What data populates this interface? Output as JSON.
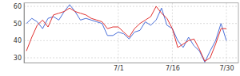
{
  "chart_data": {
    "type": "line",
    "categories": [
      null,
      null,
      null,
      null,
      null,
      null,
      null,
      null,
      null,
      null,
      null,
      null,
      null,
      null,
      null,
      null,
      null,
      "7/1",
      null,
      null,
      null,
      null,
      null,
      null,
      null,
      null,
      null,
      "7/16",
      null,
      null,
      null,
      null,
      null,
      null,
      null,
      null,
      null,
      "7/30"
    ],
    "series": [
      {
        "color": "#4a6fd8",
        "values": [
          50,
          53,
          51,
          47,
          53,
          54,
          52,
          57,
          61,
          57,
          52,
          53,
          52,
          51,
          50,
          43,
          43,
          45,
          44,
          41,
          45,
          46,
          51,
          49,
          52,
          59,
          49,
          47,
          40,
          36,
          42,
          37,
          34,
          27.5,
          34,
          40,
          50,
          40
        ]
      },
      {
        "color": "#e0302f",
        "values": [
          34,
          42,
          49,
          52,
          48,
          55,
          56,
          57,
          59,
          57,
          56,
          55,
          53,
          52,
          51,
          47,
          48,
          48,
          45,
          42,
          47,
          50,
          52,
          54,
          60,
          56,
          53,
          47,
          36,
          38,
          40,
          41,
          35,
          28,
          30,
          38,
          47,
          47
        ]
      }
    ],
    "ylim": [
      27,
      62
    ],
    "yticks": [
      30,
      40,
      50,
      60
    ],
    "grid": true
  }
}
